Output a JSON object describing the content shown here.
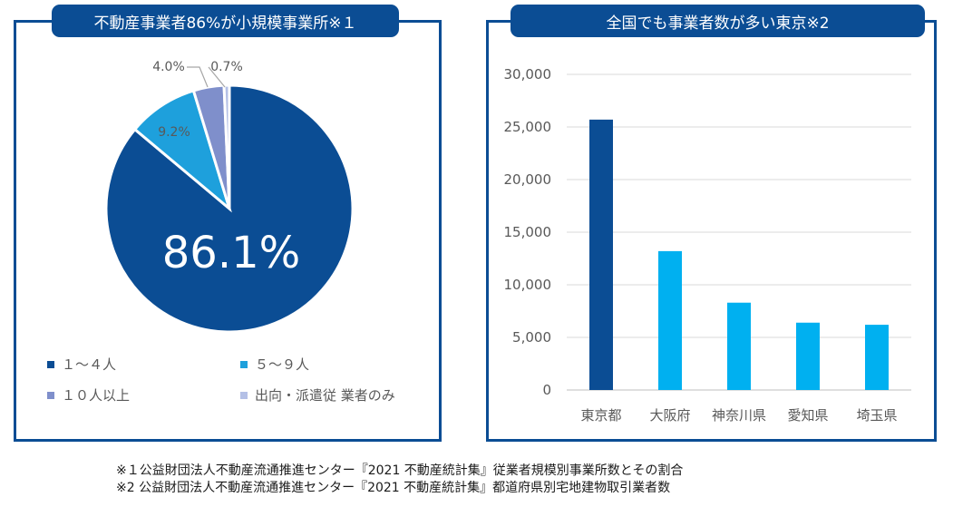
{
  "panels": {
    "left_title": "不動産事業者86%が小規模事業所※１",
    "right_title": "全国でも事業者数が多い東京※2"
  },
  "chart_data": [
    {
      "type": "pie",
      "title": "不動産事業者86%が小規模事業所※１",
      "highlight_label": "86.1%",
      "slices": [
        {
          "name": "１～４人",
          "value": 86.1,
          "label": "",
          "color": "#0b4d94"
        },
        {
          "name": "５～９人",
          "value": 9.2,
          "label": "9.2%",
          "color": "#1ea0dc"
        },
        {
          "name": "１０人以上",
          "value": 4.0,
          "label": "4.0%",
          "color": "#7f8fcb"
        },
        {
          "name": "出向・派遣従 業者のみ",
          "value": 0.7,
          "label": "0.7%",
          "color": "#b4c0e6"
        }
      ]
    },
    {
      "type": "bar",
      "title": "全国でも事業者数が多い東京※2",
      "categories": [
        "東京都",
        "大阪府",
        "神奈川県",
        "愛知県",
        "埼玉県"
      ],
      "values": [
        25700,
        13200,
        8300,
        6400,
        6200
      ],
      "colors": [
        "#0b4d94",
        "#00b0f0",
        "#00b0f0",
        "#00b0f0",
        "#00b0f0"
      ],
      "ylim": [
        0,
        30000
      ],
      "yticks": [
        "0",
        "5,000",
        "10,000",
        "15,000",
        "20,000",
        "25,000",
        "30,000"
      ],
      "grid": true,
      "xlabel": "",
      "ylabel": ""
    }
  ],
  "footnotes": [
    "※１公益財団法人不動産流通推進センター『2021 不動産統計集』従業者規模別事業所数とその割合",
    "※2 公益財団法人不動産流通推進センター『2021 不動産統計集』都道府県別宅地建物取引業者数"
  ]
}
